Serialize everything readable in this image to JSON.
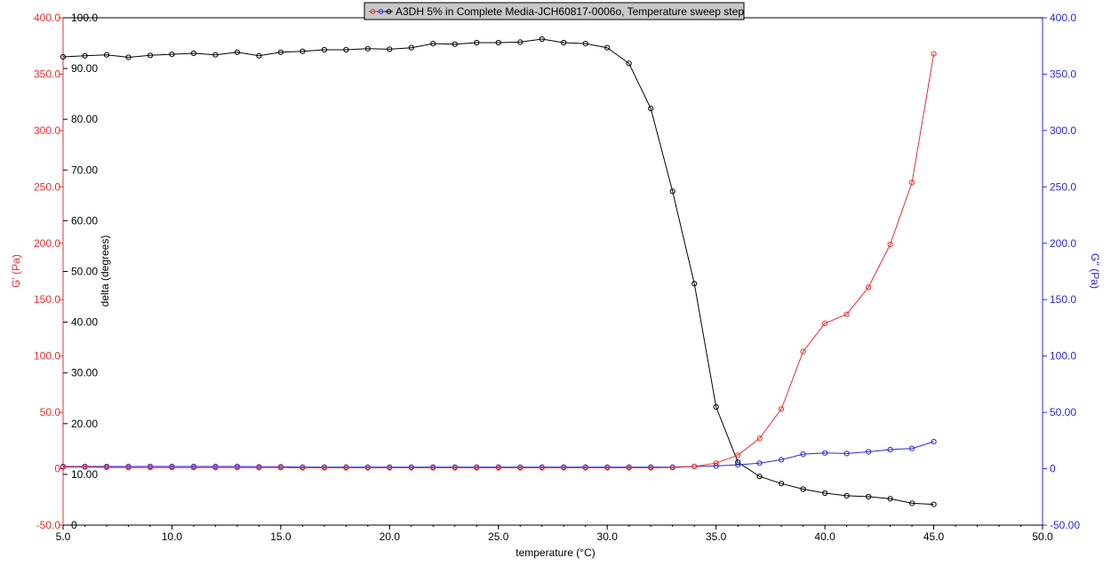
{
  "chart_data": {
    "type": "line",
    "legend": {
      "text": "A3DH 5% in Complete Media-JCH60817-0006o, Temperature sweep step",
      "placement": "top-center"
    },
    "xlabel": "temperature (°C)",
    "ylabel_left": "G' (Pa)",
    "ylabel_delta": "delta (degrees)",
    "ylabel_right": "G'' (Pa)",
    "xlim": [
      5.0,
      50.0
    ],
    "ylim_left": [
      -50.0,
      400.0
    ],
    "ylim_delta": [
      0,
      100.0
    ],
    "ylim_right": [
      -50.0,
      400.0
    ],
    "x_ticks": [
      "5.0",
      "10.0",
      "15.0",
      "20.0",
      "25.0",
      "30.0",
      "35.0",
      "40.0",
      "45.0",
      "50.0"
    ],
    "left_ticks": [
      "-50.0",
      "0",
      "50.0",
      "100.0",
      "150.0",
      "200.0",
      "250.0",
      "300.0",
      "350.0",
      "400.0"
    ],
    "right_ticks": [
      "-50.00",
      "0",
      "50.00",
      "100.0",
      "150.0",
      "200.0",
      "250.0",
      "300.0",
      "350.0",
      "400.0"
    ],
    "delta_ticks": [
      "0",
      "10.00",
      "20.00",
      "30.00",
      "40.00",
      "50.00",
      "60.00",
      "70.00",
      "80.00",
      "90.00",
      "100.0"
    ],
    "grid": false,
    "colors": {
      "g_prime": "#e8302f",
      "delta": "#000000",
      "g_double_prime": "#2a2ad8",
      "left_axis": "#e8302f",
      "right_axis": "#2a2ad8"
    },
    "x": [
      5,
      6,
      7,
      8,
      9,
      10,
      11,
      12,
      13,
      14,
      15,
      16,
      17,
      18,
      19,
      20,
      21,
      22,
      23,
      24,
      25,
      26,
      27,
      28,
      29,
      30,
      31,
      32,
      33,
      34,
      35,
      36,
      37,
      38,
      39,
      40,
      41,
      42,
      43,
      44,
      45
    ],
    "series": [
      {
        "key": "g_prime",
        "axis": "left",
        "values": [
          1.5,
          1.5,
          1.2,
          1.0,
          1.0,
          1.0,
          1.0,
          1.0,
          1.0,
          1.0,
          1.0,
          0.8,
          0.8,
          0.8,
          0.8,
          0.8,
          0.8,
          0.8,
          0.8,
          0.8,
          0.8,
          0.8,
          0.8,
          0.8,
          0.8,
          0.8,
          0.8,
          0.8,
          1.0,
          2.0,
          5.0,
          12.0,
          27.0,
          53.0,
          104.0,
          129.0,
          137.0,
          161.0,
          199.0,
          254.0,
          368.0
        ]
      },
      {
        "key": "delta",
        "axis": "delta",
        "values": [
          92.3,
          92.5,
          92.7,
          92.2,
          92.6,
          92.8,
          93.0,
          92.7,
          93.2,
          92.5,
          93.2,
          93.4,
          93.7,
          93.7,
          93.9,
          93.8,
          94.1,
          94.9,
          94.8,
          95.1,
          95.1,
          95.2,
          95.8,
          95.1,
          94.9,
          94.1,
          91.0,
          82.1,
          65.8,
          47.6,
          23.3,
          12.4,
          9.6,
          8.2,
          7.1,
          6.3,
          5.8,
          5.6,
          5.2,
          4.3,
          4.1
        ]
      },
      {
        "key": "g_double_prime",
        "axis": "right",
        "values": [
          2.0,
          2.0,
          2.0,
          2.0,
          2.0,
          2.0,
          2.0,
          2.0,
          2.0,
          1.8,
          1.8,
          1.5,
          1.5,
          1.5,
          1.5,
          1.5,
          1.5,
          1.5,
          1.5,
          1.5,
          1.5,
          1.5,
          1.5,
          1.5,
          1.5,
          1.5,
          1.5,
          1.5,
          1.5,
          2.0,
          2.5,
          3.5,
          5.0,
          8.0,
          13.0,
          14.0,
          13.5,
          15.0,
          17.0,
          18.0,
          24.0
        ]
      }
    ]
  }
}
